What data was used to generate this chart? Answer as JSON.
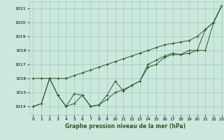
{
  "xlabel": "Graphe pression niveau de la mer (hPa)",
  "xlim": [
    -0.5,
    23
  ],
  "ylim": [
    1013.4,
    1021.5
  ],
  "yticks": [
    1014,
    1015,
    1016,
    1017,
    1018,
    1019,
    1020,
    1021
  ],
  "xticks": [
    0,
    1,
    2,
    3,
    4,
    5,
    6,
    7,
    8,
    9,
    10,
    11,
    12,
    13,
    14,
    15,
    16,
    17,
    18,
    19,
    20,
    21,
    22,
    23
  ],
  "background_color": "#cce8dd",
  "grid_color": "#99ccbb",
  "line_color": "#2d5a27",
  "line1": [
    1016.0,
    1016.0,
    1016.0,
    1016.0,
    1016.0,
    1016.2,
    1016.4,
    1016.6,
    1016.8,
    1017.0,
    1017.2,
    1017.4,
    1017.6,
    1017.8,
    1018.0,
    1018.2,
    1018.4,
    1018.5,
    1018.6,
    1018.7,
    1019.0,
    1019.5,
    1020.0,
    1021.2
  ],
  "line2": [
    1014.0,
    1014.2,
    1016.0,
    1014.8,
    1014.0,
    1014.2,
    1014.8,
    1014.0,
    1014.1,
    1014.5,
    1015.0,
    1015.2,
    1015.5,
    1015.8,
    1016.8,
    1017.0,
    1017.5,
    1017.7,
    1017.7,
    1017.8,
    1018.0,
    1018.0,
    1020.0,
    1021.2
  ],
  "line3": [
    1014.0,
    1014.2,
    1016.0,
    1014.8,
    1014.0,
    1014.9,
    1014.8,
    1014.0,
    1014.1,
    1014.8,
    1015.8,
    1015.1,
    1015.5,
    1015.8,
    1017.0,
    1017.3,
    1017.6,
    1017.8,
    1017.7,
    1018.0,
    1018.0,
    1019.5,
    1020.0,
    1021.2
  ]
}
